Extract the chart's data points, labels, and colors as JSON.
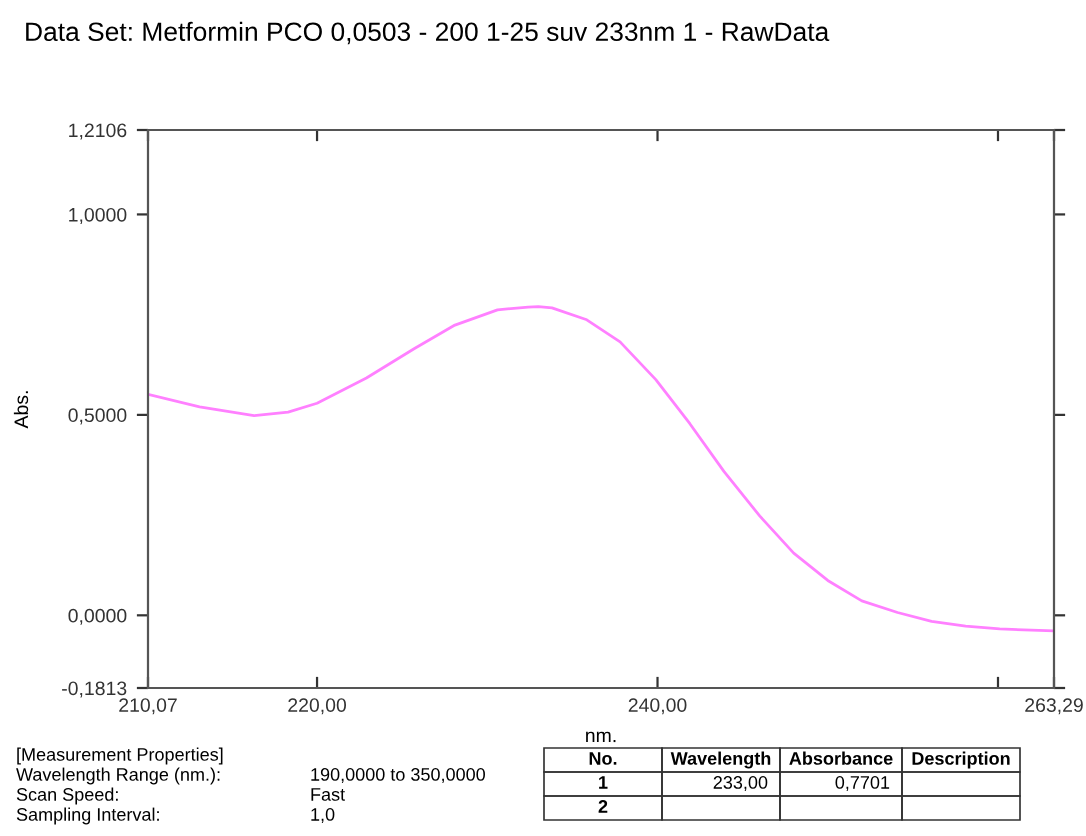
{
  "chart_data": {
    "type": "line",
    "title": "Data Set: Metformin PCO 0,0503 - 200 1-25 suv 233nm 1 - RawData",
    "xlabel": "nm.",
    "ylabel": "Abs.",
    "x": [
      210.07,
      213.1,
      216.3,
      218.3,
      220.0,
      222.9,
      225.7,
      228.1,
      230.6,
      232.4,
      233.0,
      233.8,
      235.8,
      237.8,
      239.9,
      241.9,
      243.9,
      246.0,
      248.0,
      250.0,
      252.0,
      254.1,
      256.1,
      258.1,
      260.1,
      263.29
    ],
    "series": [
      {
        "color": "#ff80ff",
        "values": [
          0.551,
          0.52,
          0.498,
          0.507,
          0.529,
          0.592,
          0.665,
          0.724,
          0.762,
          0.769,
          0.77,
          0.767,
          0.738,
          0.682,
          0.588,
          0.478,
          0.359,
          0.248,
          0.155,
          0.087,
          0.036,
          0.007,
          -0.015,
          -0.027,
          -0.034,
          -0.039
        ]
      }
    ],
    "xlim": [
      210.07,
      263.29
    ],
    "xticks": [
      {
        "value": 210.07,
        "label": "210,07"
      },
      {
        "value": 220,
        "label": "220,00"
      },
      {
        "value": 240,
        "label": "240,00"
      },
      {
        "value": 260,
        "label": null
      },
      {
        "value": 263.29,
        "label": "263,29"
      }
    ],
    "ylim": [
      -0.1813,
      1.2106
    ],
    "yticks": [
      {
        "value": -0.1813,
        "label": "-0,1813"
      },
      {
        "value": 0,
        "label": "0,0000"
      },
      {
        "value": 0.5,
        "label": "0,5000"
      },
      {
        "value": 1.0,
        "label": "1,0000"
      },
      {
        "value": 1.2106,
        "label": "1,2106"
      }
    ],
    "grid": false,
    "legend": false,
    "annotations": [
      "[Measurement Properties]",
      "Wavelength Range (nm.):",
      "190,0000 to 350,0000",
      "Scan Speed:",
      "Fast",
      "Sampling Interval:",
      "1,0",
      "No.",
      "Wavelength",
      "Absorbance",
      "Description",
      "1",
      "233,00",
      "0,7701",
      "2"
    ]
  }
}
